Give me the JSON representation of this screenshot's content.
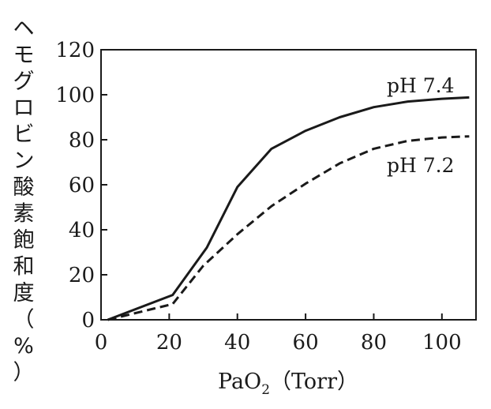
{
  "chart_data": {
    "type": "line",
    "ylabel": "ヘモグロビン酸素飽和度（%）",
    "xlabel": {
      "main": "PaO",
      "subscript": "2",
      "unit": "（Torr）"
    },
    "xlim": [
      0,
      110
    ],
    "ylim": [
      0,
      120
    ],
    "xticks": [
      0,
      20,
      40,
      60,
      80,
      100
    ],
    "yticks": [
      0,
      20,
      40,
      60,
      80,
      100,
      120
    ],
    "grid": false,
    "series": [
      {
        "name": "pH 7.4",
        "style": "solid",
        "points": [
          [
            2,
            0
          ],
          [
            21,
            11
          ],
          [
            31,
            32
          ],
          [
            40,
            59
          ],
          [
            50,
            76
          ],
          [
            60,
            84
          ],
          [
            70,
            90
          ],
          [
            80,
            94.5
          ],
          [
            90,
            97
          ],
          [
            100,
            98.2
          ],
          [
            108,
            98.8
          ]
        ]
      },
      {
        "name": "pH 7.2",
        "style": "dashed",
        "points": [
          [
            2,
            0
          ],
          [
            21,
            7
          ],
          [
            30,
            24
          ],
          [
            40,
            38
          ],
          [
            50,
            50.5
          ],
          [
            60,
            60.5
          ],
          [
            70,
            69.5
          ],
          [
            80,
            76
          ],
          [
            90,
            79.5
          ],
          [
            100,
            81
          ],
          [
            108,
            81.5
          ]
        ]
      }
    ]
  }
}
